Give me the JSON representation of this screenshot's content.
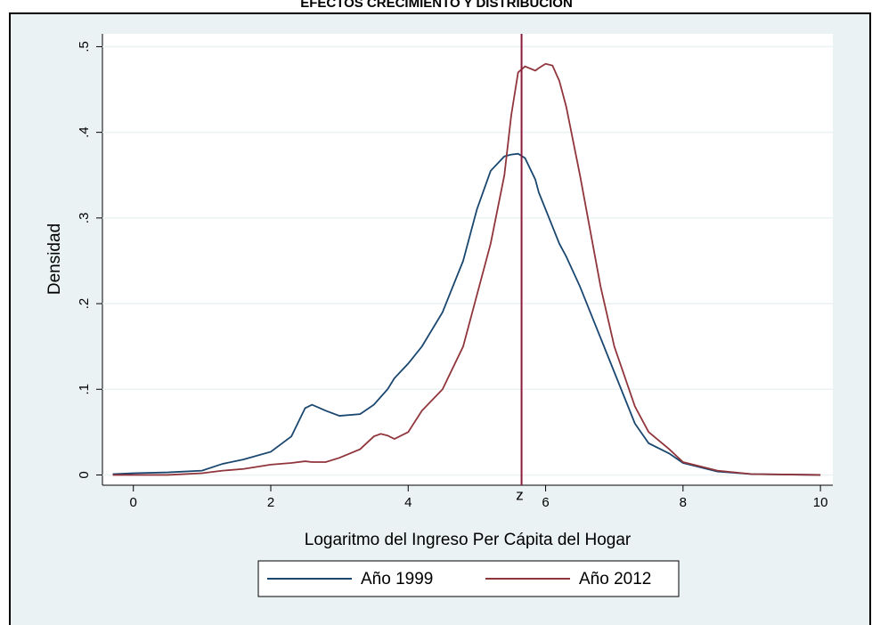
{
  "chart_data": {
    "type": "line",
    "title": "EFECTOS CRECIMIENTO Y DISTRIBUCIÓN",
    "x_label": "Logaritmo del Ingreso Per Cápita del Hogar",
    "y_label": "Densidad",
    "x": [
      -0.3,
      0,
      0.5,
      1,
      1.3,
      1.6,
      2,
      2.3,
      2.5,
      2.6,
      2.8,
      3,
      3.3,
      3.5,
      3.6,
      3.7,
      3.8,
      4,
      4.2,
      4.5,
      4.8,
      5,
      5.2,
      5.4,
      5.5,
      5.6,
      5.7,
      5.85,
      5.9,
      6,
      6.1,
      6.2,
      6.3,
      6.5,
      6.8,
      7,
      7.3,
      7.5,
      7.8,
      8,
      8.5,
      9,
      10
    ],
    "series": [
      {
        "name": "Año 1999",
        "color": "#1a476f",
        "values": [
          0.001,
          0.002,
          0.003,
          0.005,
          0.013,
          0.018,
          0.027,
          0.045,
          0.078,
          0.082,
          0.075,
          0.069,
          0.071,
          0.082,
          0.091,
          0.1,
          0.113,
          0.13,
          0.15,
          0.19,
          0.25,
          0.31,
          0.355,
          0.372,
          0.374,
          0.375,
          0.37,
          0.345,
          0.33,
          0.31,
          0.29,
          0.27,
          0.255,
          0.22,
          0.16,
          0.12,
          0.06,
          0.037,
          0.025,
          0.014,
          0.004,
          0.001,
          0
        ]
      },
      {
        "name": "Año 2012",
        "color": "#90353b",
        "values": [
          0,
          0,
          0,
          0.002,
          0.005,
          0.007,
          0.012,
          0.014,
          0.016,
          0.015,
          0.015,
          0.02,
          0.03,
          0.045,
          0.048,
          0.046,
          0.042,
          0.05,
          0.075,
          0.1,
          0.15,
          0.21,
          0.27,
          0.35,
          0.42,
          0.47,
          0.477,
          0.472,
          0.475,
          0.48,
          0.478,
          0.46,
          0.43,
          0.35,
          0.22,
          0.15,
          0.08,
          0.05,
          0.03,
          0.015,
          0.005,
          0.001,
          0
        ]
      }
    ],
    "vline": {
      "value": 5.65,
      "label": "z",
      "color": "#8b1a3a"
    },
    "xlim": [
      -0.45,
      10.18
    ],
    "ylim": [
      -0.012,
      0.515
    ],
    "xticks": [
      0,
      2,
      4,
      6,
      8,
      10
    ],
    "yticks": [
      0,
      {
        "value": 0.1,
        "label": ".1"
      },
      {
        "value": 0.2,
        "label": ".2"
      },
      {
        "value": 0.3,
        "label": ".3"
      },
      {
        "value": 0.4,
        "label": ".4"
      },
      {
        "value": 0.5,
        "label": ".5"
      }
    ],
    "grid": true
  }
}
